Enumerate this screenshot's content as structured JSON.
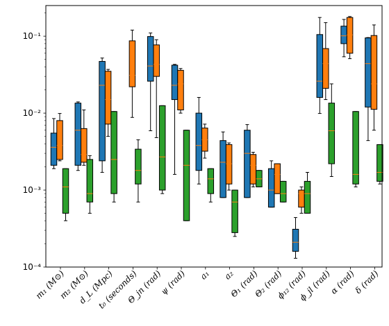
{
  "chart_data": {
    "type": "boxplot",
    "yscale": "log",
    "ylim": [
      0.0001,
      0.25
    ],
    "y_ticks": [
      {
        "value": 0.0001,
        "label": "10⁻⁴"
      },
      {
        "value": 0.001,
        "label": "10⁻³"
      },
      {
        "value": 0.01,
        "label": "10⁻²"
      },
      {
        "value": 0.1,
        "label": "10⁻¹"
      }
    ],
    "categories": [
      "m₁ (M⊙)",
      "m₂ (M⊙)",
      "d_L (Mpc)",
      "t₀ (seconds)",
      "Θ_jn (rad)",
      "ψ (rad)",
      "a₁",
      "a₂",
      "Θ₁ (rad)",
      "Θ₂ (rad)",
      "ϕ₁₂ (rad)",
      "ϕ_jl (rad)",
      "α (rad)",
      "δ (rad)"
    ],
    "series_colors": [
      "#1f77b4",
      "#ff7f0e",
      "#2ca02c"
    ],
    "median_color": "#ff7f0e",
    "series": [
      {
        "color": "#1f77b4",
        "boxes": [
          {
            "whislo": 0.0019,
            "q1": 0.0021,
            "med": 0.0036,
            "q3": 0.0055,
            "whishi": 0.0085
          },
          {
            "whislo": 0.0018,
            "q1": 0.0021,
            "med": 0.006,
            "q3": 0.0135,
            "whishi": 0.014
          },
          {
            "whislo": 0.0017,
            "q1": 0.0024,
            "med": 0.023,
            "q3": 0.047,
            "whishi": 0.052
          },
          null,
          {
            "whislo": 0.0059,
            "q1": 0.026,
            "med": 0.041,
            "q3": 0.099,
            "whishi": 0.11
          },
          {
            "whislo": 0.0016,
            "q1": 0.015,
            "med": 0.023,
            "q3": 0.042,
            "whishi": 0.043
          },
          {
            "whislo": 0.0012,
            "q1": 0.0018,
            "med": 0.0038,
            "q3": 0.01,
            "whishi": 0.016
          },
          {
            "whislo": 0.0008,
            "q1": 0.0008,
            "med": 0.0023,
            "q3": 0.0044,
            "whishi": 0.0057
          },
          {
            "whislo": 0.0008,
            "q1": 0.0008,
            "med": 0.003,
            "q3": 0.006,
            "whishi": 0.0071
          },
          {
            "whislo": 0.0006,
            "q1": 0.0006,
            "med": 0.001,
            "q3": 0.0019,
            "whishi": 0.0024
          },
          {
            "whislo": 0.00013,
            "q1": 0.00016,
            "med": 0.00021,
            "q3": 0.00031,
            "whishi": 0.00044
          },
          {
            "whislo": 0.0099,
            "q1": 0.016,
            "med": 0.026,
            "q3": 0.105,
            "whishi": 0.175
          },
          {
            "whislo": 0.054,
            "q1": 0.08,
            "med": 0.101,
            "q3": 0.135,
            "whishi": 0.165
          },
          {
            "whislo": 0.0044,
            "q1": 0.012,
            "med": 0.044,
            "q3": 0.095,
            "whishi": 0.096
          }
        ]
      },
      {
        "color": "#ff7f0e",
        "boxes": [
          {
            "whislo": 0.0024,
            "q1": 0.0025,
            "med": 0.0038,
            "q3": 0.008,
            "whishi": 0.0099
          },
          {
            "whislo": 0.0021,
            "q1": 0.0023,
            "med": 0.0029,
            "q3": 0.0063,
            "whishi": 0.011
          },
          {
            "whislo": 0.005,
            "q1": 0.0072,
            "med": 0.015,
            "q3": 0.035,
            "whishi": 0.037
          },
          {
            "whislo": 0.0088,
            "q1": 0.022,
            "med": 0.031,
            "q3": 0.087,
            "whishi": 0.12
          },
          {
            "whislo": 0.0048,
            "q1": 0.03,
            "med": 0.043,
            "q3": 0.077,
            "whishi": 0.09
          },
          {
            "whislo": 0.01,
            "q1": 0.011,
            "med": 0.024,
            "q3": 0.036,
            "whishi": 0.038
          },
          {
            "whislo": 0.0026,
            "q1": 0.0032,
            "med": 0.0045,
            "q3": 0.0064,
            "whishi": 0.0072
          },
          {
            "whislo": 0.001,
            "q1": 0.0012,
            "med": 0.0022,
            "q3": 0.0039,
            "whishi": 0.0041
          },
          {
            "whislo": 0.0011,
            "q1": 0.0012,
            "med": 0.0021,
            "q3": 0.0029,
            "whishi": 0.0031
          },
          {
            "whislo": 0.0009,
            "q1": 0.0009,
            "med": 0.0016,
            "q3": 0.0022,
            "whishi": 0.0022
          },
          {
            "whislo": 0.0005,
            "q1": 0.0006,
            "med": 0.0009,
            "q3": 0.001,
            "whishi": 0.0011
          },
          {
            "whislo": 0.015,
            "q1": 0.021,
            "med": 0.044,
            "q3": 0.069,
            "whishi": 0.15
          },
          {
            "whislo": 0.051,
            "q1": 0.06,
            "med": 0.104,
            "q3": 0.175,
            "whishi": 0.18
          },
          {
            "whislo": 0.006,
            "q1": 0.0112,
            "med": 0.024,
            "q3": 0.102,
            "whishi": 0.14
          }
        ]
      },
      {
        "color": "#2ca02c",
        "boxes": [
          {
            "whislo": 0.0004,
            "q1": 0.0005,
            "med": 0.0011,
            "q3": 0.0019,
            "whishi": 0.0019
          },
          {
            "whislo": 0.0005,
            "q1": 0.0007,
            "med": 0.0009,
            "q3": 0.0025,
            "whishi": 0.0028
          },
          {
            "whislo": 0.0007,
            "q1": 0.0009,
            "med": 0.0025,
            "q3": 0.0105,
            "whishi": 0.0105
          },
          {
            "whislo": 0.0007,
            "q1": 0.0012,
            "med": 0.0018,
            "q3": 0.0034,
            "whishi": 0.0045
          },
          {
            "whislo": 0.0009,
            "q1": 0.001,
            "med": 0.0027,
            "q3": 0.0125,
            "whishi": 0.0125
          },
          {
            "whislo": 0.0004,
            "q1": 0.0004,
            "med": 0.0021,
            "q3": 0.006,
            "whishi": 0.006
          },
          {
            "whislo": 0.0007,
            "q1": 0.0009,
            "med": 0.0014,
            "q3": 0.0019,
            "whishi": 0.0019
          },
          {
            "whislo": 0.00025,
            "q1": 0.00028,
            "med": 0.0007,
            "q3": 0.001,
            "whishi": 0.001
          },
          {
            "whislo": 0.0011,
            "q1": 0.0011,
            "med": 0.0014,
            "q3": 0.0018,
            "whishi": 0.0018
          },
          {
            "whislo": 0.0007,
            "q1": 0.0007,
            "med": 0.0009,
            "q3": 0.0013,
            "whishi": 0.0013
          },
          {
            "whislo": 0.0005,
            "q1": 0.0005,
            "med": 0.0009,
            "q3": 0.0013,
            "whishi": 0.0017
          },
          {
            "whislo": 0.0015,
            "q1": 0.0022,
            "med": 0.0059,
            "q3": 0.0135,
            "whishi": 0.024
          },
          {
            "whislo": 0.0011,
            "q1": 0.0012,
            "med": 0.0016,
            "q3": 0.0105,
            "whishi": 0.0105
          },
          {
            "whislo": 0.0012,
            "q1": 0.0013,
            "med": 0.0017,
            "q3": 0.0039,
            "whishi": 0.0039
          }
        ]
      }
    ]
  }
}
